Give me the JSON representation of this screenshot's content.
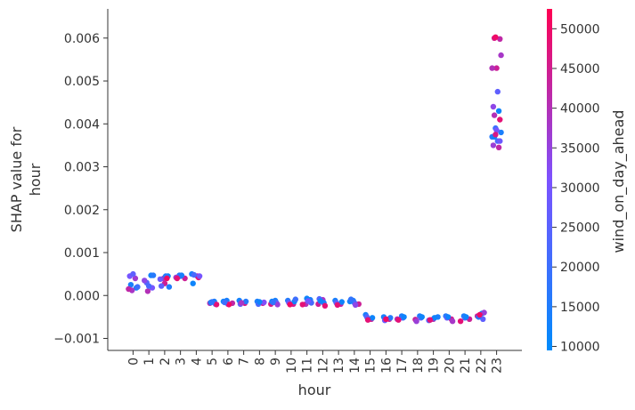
{
  "chart_data": {
    "type": "scatter",
    "xlabel": "hour",
    "ylabel_lines": [
      "SHAP value for",
      "hour"
    ],
    "x_ticks": [
      0,
      1,
      2,
      3,
      4,
      5,
      6,
      7,
      8,
      9,
      10,
      11,
      12,
      13,
      14,
      15,
      16,
      17,
      18,
      19,
      20,
      21,
      22,
      23
    ],
    "y_ticks": [
      -0.001,
      0.0,
      0.001,
      0.002,
      0.003,
      0.004,
      0.005,
      0.006
    ],
    "y_tick_labels": [
      "−0.001",
      "0.000",
      "0.001",
      "0.002",
      "0.003",
      "0.004",
      "0.005",
      "0.006"
    ],
    "ylim": [
      -0.00128,
      0.00668
    ],
    "xlim": [
      -1.6,
      24.6
    ],
    "colorbar": {
      "label": "wind_on_day_ahead",
      "min": 9500,
      "max": 52500,
      "ticks": [
        10000,
        15000,
        20000,
        25000,
        30000,
        35000,
        40000,
        45000,
        50000
      ],
      "color_low": "#008bfb",
      "color_mid": "#7c52ff",
      "color_high": "#ff0052"
    },
    "spread_by_hour": [
      0.00011,
      0.0001,
      0.0001,
      3e-05,
      5e-05,
      5e-05,
      4e-05,
      4e-05,
      4e-05,
      4e-05,
      4e-05,
      5e-05,
      4e-05,
      4e-05,
      4e-05,
      4e-05,
      3e-05,
      3e-05,
      4e-05,
      4e-05,
      4e-05,
      4e-05,
      4e-05,
      0.00075
    ],
    "points": [
      {
        "hour": 0,
        "shap": 0.00045,
        "wind": 30000
      },
      {
        "hour": 0,
        "shap": 0.0004,
        "wind": 37000
      },
      {
        "hour": 0,
        "shap": 0.00025,
        "wind": 14000
      },
      {
        "hour": 0,
        "shap": 0.00018,
        "wind": 12000
      },
      {
        "hour": 0,
        "shap": 0.00012,
        "wind": 38000
      },
      {
        "hour": 0,
        "shap": 0.0002,
        "wind": 20000
      },
      {
        "hour": 0,
        "shap": 0.0005,
        "wind": 26000
      },
      {
        "hour": 0,
        "shap": 0.00015,
        "wind": 42000
      },
      {
        "hour": 1,
        "shap": 0.00047,
        "wind": 13000
      },
      {
        "hour": 1,
        "shap": 0.0003,
        "wind": 24000
      },
      {
        "hour": 1,
        "shap": 0.00018,
        "wind": 30000
      },
      {
        "hour": 1,
        "shap": 0.0001,
        "wind": 40000
      },
      {
        "hour": 1,
        "shap": 0.00047,
        "wind": 16000
      },
      {
        "hour": 1,
        "shap": 0.00022,
        "wind": 22000
      },
      {
        "hour": 1,
        "shap": 0.00035,
        "wind": 34000
      },
      {
        "hour": 2,
        "shap": 0.00045,
        "wind": 12000
      },
      {
        "hour": 2,
        "shap": 0.0004,
        "wind": 38000
      },
      {
        "hour": 2,
        "shap": 0.0002,
        "wind": 15000
      },
      {
        "hour": 2,
        "shap": 0.00028,
        "wind": 44000
      },
      {
        "hour": 2,
        "shap": 0.00038,
        "wind": 28000
      },
      {
        "hour": 2,
        "shap": 0.00045,
        "wind": 16000
      },
      {
        "hour": 2,
        "shap": 0.00022,
        "wind": 26000
      },
      {
        "hour": 2,
        "shap": 0.0004,
        "wind": 50000
      },
      {
        "hour": 3,
        "shap": 0.00047,
        "wind": 16000
      },
      {
        "hour": 3,
        "shap": 0.0004,
        "wind": 44000
      },
      {
        "hour": 3,
        "shap": 0.00045,
        "wind": 20000
      },
      {
        "hour": 3,
        "shap": 0.00042,
        "wind": 36000
      },
      {
        "hour": 3,
        "shap": 0.00047,
        "wind": 14000
      },
      {
        "hour": 3,
        "shap": 0.0004,
        "wind": 48000
      },
      {
        "hour": 4,
        "shap": 0.0005,
        "wind": 14000
      },
      {
        "hour": 4,
        "shap": 0.00045,
        "wind": 40000
      },
      {
        "hour": 4,
        "shap": 0.00028,
        "wind": 12000
      },
      {
        "hour": 4,
        "shap": 0.00042,
        "wind": 48000
      },
      {
        "hour": 4,
        "shap": 0.00048,
        "wind": 22000
      },
      {
        "hour": 4,
        "shap": 0.00045,
        "wind": 30000
      },
      {
        "hour": 5,
        "shap": -0.00014,
        "wind": 14000
      },
      {
        "hour": 5,
        "shap": -0.00018,
        "wind": 40000
      },
      {
        "hour": 5,
        "shap": -0.0002,
        "wind": 24000
      },
      {
        "hour": 5,
        "shap": -0.00016,
        "wind": 12000
      },
      {
        "hour": 5,
        "shap": -0.00021,
        "wind": 48000
      },
      {
        "hour": 5,
        "shap": -0.00015,
        "wind": 18000
      },
      {
        "hour": 6,
        "shap": -0.00012,
        "wind": 14000
      },
      {
        "hour": 6,
        "shap": -0.00018,
        "wind": 42000
      },
      {
        "hour": 6,
        "shap": -0.0002,
        "wind": 28000
      },
      {
        "hour": 6,
        "shap": -0.00014,
        "wind": 12000
      },
      {
        "hour": 6,
        "shap": -0.00021,
        "wind": 50000
      },
      {
        "hour": 6,
        "shap": -0.00016,
        "wind": 20000
      },
      {
        "hour": 7,
        "shap": -0.00012,
        "wind": 13000
      },
      {
        "hour": 7,
        "shap": -0.00018,
        "wind": 46000
      },
      {
        "hour": 7,
        "shap": -0.0002,
        "wind": 26000
      },
      {
        "hour": 7,
        "shap": -0.00014,
        "wind": 16000
      },
      {
        "hour": 7,
        "shap": -0.00017,
        "wind": 38000
      },
      {
        "hour": 8,
        "shap": -0.00014,
        "wind": 14000
      },
      {
        "hour": 8,
        "shap": -0.00018,
        "wind": 44000
      },
      {
        "hour": 8,
        "shap": -0.0002,
        "wind": 22000
      },
      {
        "hour": 8,
        "shap": -0.00016,
        "wind": 32000
      },
      {
        "hour": 8,
        "shap": -0.00015,
        "wind": 12000
      },
      {
        "hour": 9,
        "shap": -0.00012,
        "wind": 14000
      },
      {
        "hour": 9,
        "shap": -0.0002,
        "wind": 46000
      },
      {
        "hour": 9,
        "shap": -0.00017,
        "wind": 24000
      },
      {
        "hour": 9,
        "shap": -0.00014,
        "wind": 12000
      },
      {
        "hour": 9,
        "shap": -0.00021,
        "wind": 36000
      },
      {
        "hour": 9,
        "shap": -0.00016,
        "wind": 18000
      },
      {
        "hour": 10,
        "shap": -0.00012,
        "wind": 16000
      },
      {
        "hour": 10,
        "shap": -0.0002,
        "wind": 44000
      },
      {
        "hour": 10,
        "shap": -0.00017,
        "wind": 28000
      },
      {
        "hour": 10,
        "shap": -0.00014,
        "wind": 12000
      },
      {
        "hour": 10,
        "shap": -0.00021,
        "wind": 50000
      },
      {
        "hour": 10,
        "shap": -9e-05,
        "wind": 20000
      },
      {
        "hour": 11,
        "shap": -0.0001,
        "wind": 14000
      },
      {
        "hour": 11,
        "shap": -0.0002,
        "wind": 40000
      },
      {
        "hour": 11,
        "shap": -0.00017,
        "wind": 22000
      },
      {
        "hour": 11,
        "shap": -7e-05,
        "wind": 12000
      },
      {
        "hour": 11,
        "shap": -0.00021,
        "wind": 48000
      },
      {
        "hour": 11,
        "shap": -0.00013,
        "wind": 30000
      },
      {
        "hour": 12,
        "shap": -0.0001,
        "wind": 38000
      },
      {
        "hour": 12,
        "shap": -0.0002,
        "wind": 44000
      },
      {
        "hour": 12,
        "shap": -0.00017,
        "wind": 14000
      },
      {
        "hour": 12,
        "shap": -8e-05,
        "wind": 24000
      },
      {
        "hour": 12,
        "shap": -0.00024,
        "wind": 48000
      },
      {
        "hour": 12,
        "shap": -0.00013,
        "wind": 12000
      },
      {
        "hour": 13,
        "shap": -0.00012,
        "wind": 14000
      },
      {
        "hour": 13,
        "shap": -0.0002,
        "wind": 42000
      },
      {
        "hour": 13,
        "shap": -0.00017,
        "wind": 26000
      },
      {
        "hour": 13,
        "shap": -0.00015,
        "wind": 12000
      },
      {
        "hour": 13,
        "shap": -0.00022,
        "wind": 48000
      },
      {
        "hour": 14,
        "shap": -0.00012,
        "wind": 14000
      },
      {
        "hour": 14,
        "shap": -0.0002,
        "wind": 44000
      },
      {
        "hour": 14,
        "shap": -0.00017,
        "wind": 22000
      },
      {
        "hour": 14,
        "shap": -0.00014,
        "wind": 12000
      },
      {
        "hour": 14,
        "shap": -0.00022,
        "wind": 34000
      },
      {
        "hour": 14,
        "shap": -9e-05,
        "wind": 18000
      },
      {
        "hour": 15,
        "shap": -0.00045,
        "wind": 14000
      },
      {
        "hour": 15,
        "shap": -0.00055,
        "wind": 44000
      },
      {
        "hour": 15,
        "shap": -0.0005,
        "wind": 24000
      },
      {
        "hour": 15,
        "shap": -0.00052,
        "wind": 12000
      },
      {
        "hour": 15,
        "shap": -0.00057,
        "wind": 48000
      },
      {
        "hour": 16,
        "shap": -0.0005,
        "wind": 14000
      },
      {
        "hour": 16,
        "shap": -0.00055,
        "wind": 44000
      },
      {
        "hour": 16,
        "shap": -0.00058,
        "wind": 28000
      },
      {
        "hour": 16,
        "shap": -0.00052,
        "wind": 16000
      },
      {
        "hour": 16,
        "shap": -0.00055,
        "wind": 50000
      },
      {
        "hour": 17,
        "shap": -0.00048,
        "wind": 14000
      },
      {
        "hour": 17,
        "shap": -0.00055,
        "wind": 40000
      },
      {
        "hour": 17,
        "shap": -0.00052,
        "wind": 22000
      },
      {
        "hour": 17,
        "shap": -0.00057,
        "wind": 48000
      },
      {
        "hour": 17,
        "shap": -0.0005,
        "wind": 12000
      },
      {
        "hour": 18,
        "shap": -0.00048,
        "wind": 14000
      },
      {
        "hour": 18,
        "shap": -0.00056,
        "wind": 44000
      },
      {
        "hour": 18,
        "shap": -0.00052,
        "wind": 26000
      },
      {
        "hour": 18,
        "shap": -0.0006,
        "wind": 36000
      },
      {
        "hour": 18,
        "shap": -0.0005,
        "wind": 12000
      },
      {
        "hour": 19,
        "shap": -0.0005,
        "wind": 14000
      },
      {
        "hour": 19,
        "shap": -0.00055,
        "wind": 40000
      },
      {
        "hour": 19,
        "shap": -0.00058,
        "wind": 24000
      },
      {
        "hour": 19,
        "shap": -0.00052,
        "wind": 12000
      },
      {
        "hour": 19,
        "shap": -0.00057,
        "wind": 48000
      },
      {
        "hour": 20,
        "shap": -0.00048,
        "wind": 16000
      },
      {
        "hour": 20,
        "shap": -0.00055,
        "wind": 44000
      },
      {
        "hour": 20,
        "shap": -0.00052,
        "wind": 28000
      },
      {
        "hour": 20,
        "shap": -0.0006,
        "wind": 38000
      },
      {
        "hour": 20,
        "shap": -0.0005,
        "wind": 12000
      },
      {
        "hour": 21,
        "shap": -0.00048,
        "wind": 14000
      },
      {
        "hour": 21,
        "shap": -0.00055,
        "wind": 44000
      },
      {
        "hour": 21,
        "shap": -0.00052,
        "wind": 22000
      },
      {
        "hour": 21,
        "shap": -0.0006,
        "wind": 48000
      },
      {
        "hour": 21,
        "shap": -0.0005,
        "wind": 12000
      },
      {
        "hour": 22,
        "shap": -0.00042,
        "wind": 12000
      },
      {
        "hour": 22,
        "shap": -0.00048,
        "wind": 44000
      },
      {
        "hour": 22,
        "shap": -0.00055,
        "wind": 26000
      },
      {
        "hour": 22,
        "shap": -0.0005,
        "wind": 16000
      },
      {
        "hour": 22,
        "shap": -0.0004,
        "wind": 36000
      },
      {
        "hour": 22,
        "shap": -0.00045,
        "wind": 50000
      },
      {
        "hour": 23,
        "shap": 0.006,
        "wind": 46000
      },
      {
        "hour": 23,
        "shap": 0.00598,
        "wind": 42000
      },
      {
        "hour": 23,
        "shap": 0.00602,
        "wind": 50000
      },
      {
        "hour": 23,
        "shap": 0.0056,
        "wind": 38000
      },
      {
        "hour": 23,
        "shap": 0.0053,
        "wind": 44000
      },
      {
        "hour": 23,
        "shap": 0.0053,
        "wind": 40000
      },
      {
        "hour": 23,
        "shap": 0.00475,
        "wind": 26000
      },
      {
        "hour": 23,
        "shap": 0.0044,
        "wind": 34000
      },
      {
        "hour": 23,
        "shap": 0.0043,
        "wind": 12000
      },
      {
        "hour": 23,
        "shap": 0.0042,
        "wind": 40000
      },
      {
        "hour": 23,
        "shap": 0.0041,
        "wind": 48000
      },
      {
        "hour": 23,
        "shap": 0.0039,
        "wind": 20000
      },
      {
        "hour": 23,
        "shap": 0.0038,
        "wind": 14000
      },
      {
        "hour": 23,
        "shap": 0.00385,
        "wind": 30000
      },
      {
        "hour": 23,
        "shap": 0.0037,
        "wind": 16000
      },
      {
        "hour": 23,
        "shap": 0.0036,
        "wind": 22000
      },
      {
        "hour": 23,
        "shap": 0.0035,
        "wind": 36000
      },
      {
        "hour": 23,
        "shap": 0.00345,
        "wind": 42000
      },
      {
        "hour": 23,
        "shap": 0.0037,
        "wind": 12000
      },
      {
        "hour": 23,
        "shap": 0.0036,
        "wind": 28000
      },
      {
        "hour": 23,
        "shap": 0.00375,
        "wind": 46000
      }
    ]
  }
}
